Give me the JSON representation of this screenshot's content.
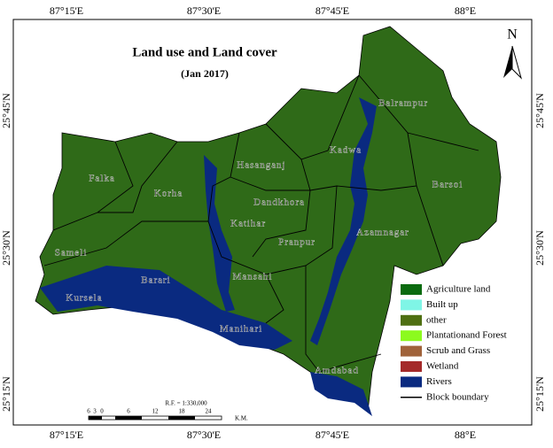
{
  "title": "Land use and Land cover",
  "subtitle": "(Jan 2017)",
  "north": "N",
  "longitudes": [
    "87°15'E",
    "87°30'E",
    "87°45'E",
    "88°E"
  ],
  "latitudes": [
    "25°45'N",
    "25°30'N",
    "25°15'N"
  ],
  "blocks": [
    "Falka",
    "Korha",
    "Hasanganj",
    "Kadwa",
    "Balrampur",
    "Barsoi",
    "Dandkhora",
    "Katihar",
    "Pranpur",
    "Azamnagar",
    "Sameli",
    "Barari",
    "Mansahi",
    "Kursela",
    "Manihari",
    "Amdabad"
  ],
  "legend": [
    {
      "label": "Agriculture land",
      "color": "#0b6b10"
    },
    {
      "label": "Built up",
      "color": "#7ff5e6"
    },
    {
      "label": "other",
      "color": "#4e6f12"
    },
    {
      "label": "Plantationand Forest",
      "color": "#8cfa1e"
    },
    {
      "label": "Scrub and Grass",
      "color": "#a0623a"
    },
    {
      "label": "Wetland",
      "color": "#a42a2a"
    },
    {
      "label": "Rivers",
      "color": "#0a2a80"
    }
  ],
  "boundary_label": "Block boundary",
  "scale": {
    "ratio": "R.F. = 1:330,000",
    "ticks": [
      "6",
      "3",
      "0",
      "6",
      "12",
      "18",
      "24"
    ],
    "unit": "K.M."
  }
}
